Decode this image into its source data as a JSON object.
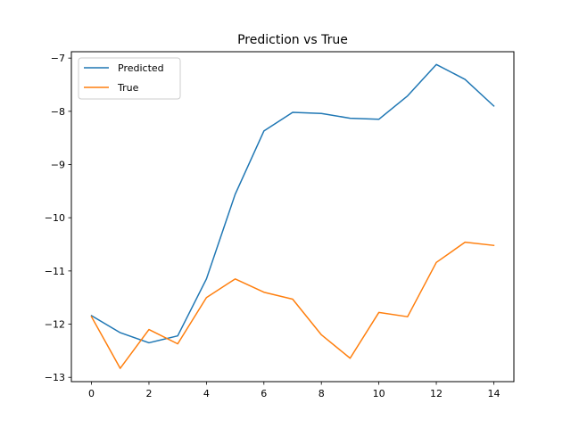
{
  "chart_data": {
    "type": "line",
    "title": "Prediction vs True",
    "xlabel": "",
    "ylabel": "",
    "x": [
      0,
      1,
      2,
      3,
      4,
      5,
      6,
      7,
      8,
      9,
      10,
      11,
      12,
      13,
      14
    ],
    "xlim": [
      -0.7,
      14.7
    ],
    "ylim": [
      -13.08,
      -6.88
    ],
    "xticks": [
      0,
      2,
      4,
      6,
      8,
      10,
      12,
      14
    ],
    "yticks": [
      -13,
      -12,
      -11,
      -10,
      -9,
      -8,
      -7
    ],
    "grid": false,
    "legend_position": "top-left",
    "series": [
      {
        "name": "Predicted",
        "color": "#1f77b4",
        "values": [
          -11.84,
          -12.16,
          -12.35,
          -12.22,
          -11.15,
          -9.56,
          -8.37,
          -8.02,
          -8.04,
          -8.13,
          -8.15,
          -7.71,
          -7.12,
          -7.4,
          -7.9
        ]
      },
      {
        "name": "True",
        "color": "#ff7f0e",
        "values": [
          -11.86,
          -12.83,
          -12.1,
          -12.37,
          -11.5,
          -11.15,
          -11.4,
          -11.53,
          -12.2,
          -12.64,
          -11.78,
          -11.86,
          -10.84,
          -10.46,
          -10.52
        ]
      }
    ]
  }
}
